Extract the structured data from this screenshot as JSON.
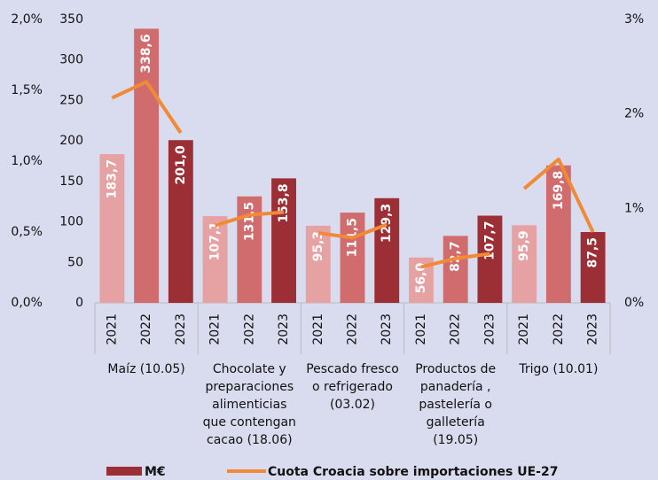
{
  "chart_data": {
    "type": "bar",
    "ylim": [
      0,
      350
    ],
    "yticks": [
      0,
      50,
      100,
      150,
      200,
      250,
      300,
      350
    ],
    "y2lim": [
      0,
      3
    ],
    "y2ticks": [
      {
        "value": 0,
        "label": "0%"
      },
      {
        "value": 1,
        "label": "1%"
      },
      {
        "value": 2,
        "label": "2%"
      },
      {
        "value": 3,
        "label": "3%"
      }
    ],
    "y3lim": [
      0,
      2
    ],
    "y3ticks": [
      {
        "value": 0,
        "label": "0,0%"
      },
      {
        "value": 0.5,
        "label": "0,5%"
      },
      {
        "value": 1,
        "label": "1,0%"
      },
      {
        "value": 1.5,
        "label": "1,5%"
      },
      {
        "value": 2,
        "label": "2,0%"
      }
    ],
    "year_colors": [
      "#e6a2a3",
      "#d06c6d",
      "#9c2f36"
    ],
    "groups": [
      {
        "label_lines": [
          "Maíz (10.05)"
        ],
        "years": [
          "2021",
          "2022",
          "2023"
        ],
        "values": [
          183.7,
          338.6,
          201.0
        ],
        "value_labels": [
          "183,7",
          "338,6",
          "201,0"
        ],
        "share": [
          2.17,
          2.34,
          1.8
        ]
      },
      {
        "label_lines": [
          "Chocolate y",
          "preparaciones",
          "alimenticias",
          "que contengan",
          "cacao  (18.06)"
        ],
        "years": [
          "2021",
          "2022",
          "2023"
        ],
        "values": [
          107.1,
          131.5,
          153.8
        ],
        "value_labels": [
          "107,1",
          "131,5",
          "153,8"
        ],
        "share": [
          0.82,
          0.93,
          0.96
        ]
      },
      {
        "label_lines": [
          "Pescado fresco",
          "o refrigerado",
          "(03.02)"
        ],
        "years": [
          "2021",
          "2022",
          "2023"
        ],
        "values": [
          95.3,
          111.5,
          129.3
        ],
        "value_labels": [
          "95,3",
          "111,5",
          "129,3"
        ],
        "share": [
          0.74,
          0.69,
          0.83
        ]
      },
      {
        "label_lines": [
          "Productos de",
          "panadería ,",
          "pastelería o",
          "galletería",
          "(19.05)"
        ],
        "years": [
          "2021",
          "2022",
          "2023"
        ],
        "values": [
          56.0,
          82.7,
          107.7
        ],
        "value_labels": [
          "56,0",
          "82,7",
          "107,7"
        ],
        "share": [
          0.38,
          0.47,
          0.52
        ]
      },
      {
        "label_lines": [
          "Trigo (10.01)"
        ],
        "years": [
          "2021",
          "2022",
          "2023"
        ],
        "values": [
          95.9,
          169.8,
          87.5
        ],
        "value_labels": [
          "95,9",
          "169,8",
          "87,5"
        ],
        "share": [
          1.21,
          1.52,
          0.75
        ]
      }
    ],
    "legend": [
      {
        "name": "M€",
        "color": "#9c2f36"
      },
      {
        "name": "Cuota Croacia sobre importaciones UE-27",
        "color": "#f08a36"
      }
    ],
    "line_color": "#f08a36"
  }
}
